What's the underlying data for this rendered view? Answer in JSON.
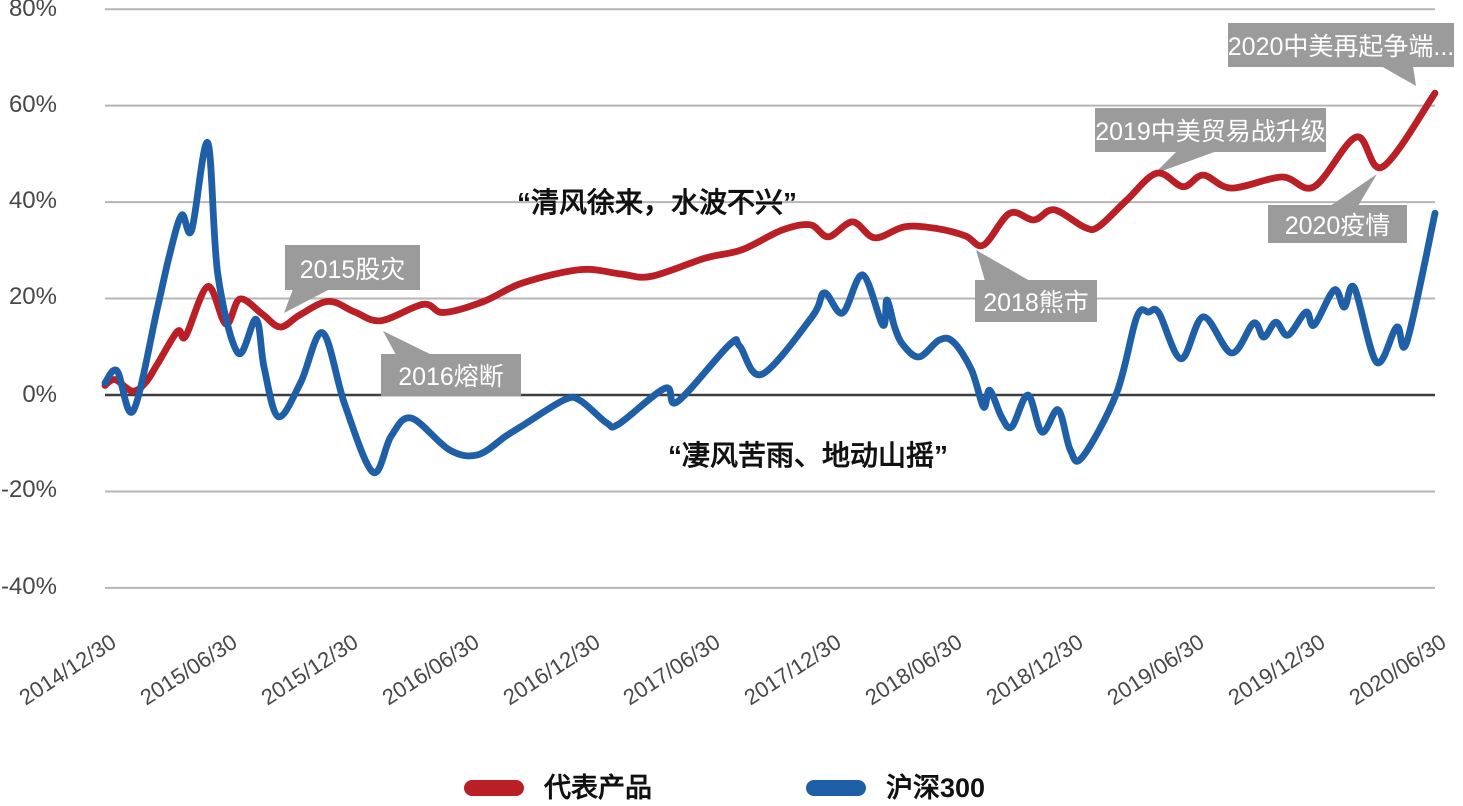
{
  "colors": {
    "series_red": "#b91f25",
    "series_blue": "#1f5fa8",
    "gridline": "#b5b5b5",
    "zero_axis": "#3d3d3d",
    "axis_label": "#484848",
    "callout_bg": "#9b9b9b",
    "callout_text": "#ffffff",
    "quote_text": "#111111"
  },
  "legend": {
    "items": [
      {
        "label": "代表产品",
        "color": "#b91f25"
      },
      {
        "label": "沪深300",
        "color": "#1f5fa8"
      }
    ]
  },
  "quotes": [
    {
      "text": "“清风徐来，水波不兴”"
    },
    {
      "text": "“凄风苦雨、地动山摇”"
    }
  ],
  "chart_data": {
    "type": "line",
    "title": "",
    "xlabel": "",
    "ylabel": "",
    "grid": true,
    "legend_position": "bottom",
    "y_axis": {
      "ticks": [
        "80%",
        "60%",
        "40%",
        "20%",
        "0%",
        "-20%",
        "-40%"
      ],
      "values": [
        80,
        60,
        40,
        20,
        0,
        -20,
        -40
      ],
      "range": [
        -40,
        80
      ]
    },
    "x_axis": {
      "labels": [
        "2014/12/30",
        "2015/06/30",
        "2015/12/30",
        "2016/06/30",
        "2016/12/30",
        "2017/06/30",
        "2017/12/30",
        "2018/06/30",
        "2018/12/30",
        "2019/06/30",
        "2019/12/30",
        "2020/06/30"
      ],
      "tick_month_index": [
        0,
        6,
        12,
        18,
        24,
        30,
        36,
        42,
        48,
        54,
        60,
        66
      ],
      "unit": "months since 2014/12/30"
    },
    "annotations": [
      {
        "label": "2015股灾"
      },
      {
        "label": "2016熔断"
      },
      {
        "label": "2018熊市"
      },
      {
        "label": "2019中美贸易战升级"
      },
      {
        "label": "2020疫情"
      },
      {
        "label": "2020中美再起争端..."
      }
    ],
    "series": [
      {
        "name": "代表产品",
        "color": "#b91f25",
        "points": [
          [
            0,
            2
          ],
          [
            0.5,
            3.2
          ],
          [
            1.35,
            0.8
          ],
          [
            2,
            2.5
          ],
          [
            2.6,
            6.4
          ],
          [
            3.6,
            13.2
          ],
          [
            4,
            12.2
          ],
          [
            5.1,
            22.5
          ],
          [
            6,
            14.7
          ],
          [
            6.7,
            19.9
          ],
          [
            7.8,
            16.8
          ],
          [
            8.7,
            14.1
          ],
          [
            9.7,
            16.7
          ],
          [
            11.1,
            19.4
          ],
          [
            12.4,
            17.2
          ],
          [
            13.7,
            15.4
          ],
          [
            15.8,
            18.8
          ],
          [
            16.8,
            17.1
          ],
          [
            18.8,
            19.4
          ],
          [
            20.7,
            23.2
          ],
          [
            23.6,
            26
          ],
          [
            25.6,
            25.1
          ],
          [
            27.1,
            24.6
          ],
          [
            29.8,
            28.4
          ],
          [
            31.6,
            30.1
          ],
          [
            33.6,
            34.2
          ],
          [
            35,
            35.3
          ],
          [
            35.9,
            32.8
          ],
          [
            37.1,
            35.9
          ],
          [
            38.2,
            32.6
          ],
          [
            39.7,
            34.9
          ],
          [
            41.3,
            34.5
          ],
          [
            42.7,
            33
          ],
          [
            43.6,
            31.1
          ],
          [
            44.9,
            37.7
          ],
          [
            46.1,
            36.3
          ],
          [
            47.1,
            38.4
          ],
          [
            48.6,
            34.8
          ],
          [
            49.3,
            34.9
          ],
          [
            50.7,
            40.4
          ],
          [
            52.2,
            46
          ],
          [
            53.5,
            43.2
          ],
          [
            54.5,
            45.6
          ],
          [
            55.9,
            42.9
          ],
          [
            58.4,
            45.2
          ],
          [
            60,
            43.2
          ],
          [
            62.1,
            53.5
          ],
          [
            63.4,
            47.3
          ],
          [
            66,
            62.6
          ]
        ]
      },
      {
        "name": "沪深300",
        "color": "#1f5fa8",
        "points": [
          [
            0,
            2.5
          ],
          [
            0.6,
            5
          ],
          [
            1.4,
            -3.3
          ],
          [
            2.6,
            18
          ],
          [
            3.2,
            29
          ],
          [
            3.8,
            37.3
          ],
          [
            4.3,
            34.2
          ],
          [
            5.1,
            52.3
          ],
          [
            5.6,
            25
          ],
          [
            6.6,
            8.7
          ],
          [
            7.5,
            15.7
          ],
          [
            7.9,
            5.6
          ],
          [
            8.6,
            -4.5
          ],
          [
            9.7,
            2.5
          ],
          [
            10.8,
            12.9
          ],
          [
            11.9,
            -2
          ],
          [
            13.3,
            -16
          ],
          [
            14.2,
            -8.5
          ],
          [
            15.2,
            -4.8
          ],
          [
            17.1,
            -11.4
          ],
          [
            18.5,
            -12.4
          ],
          [
            19.9,
            -8.5
          ],
          [
            20.7,
            -6.4
          ],
          [
            22.8,
            -1
          ],
          [
            23.6,
            -1.2
          ],
          [
            24.9,
            -5.8
          ],
          [
            25.5,
            -6
          ],
          [
            27.8,
            1.4
          ],
          [
            28.4,
            -1.4
          ],
          [
            31,
            10.5
          ],
          [
            31.5,
            10.1
          ],
          [
            32.6,
            4.3
          ],
          [
            35.1,
            16.3
          ],
          [
            35.7,
            21.2
          ],
          [
            36.6,
            17
          ],
          [
            37.6,
            24.9
          ],
          [
            38.6,
            14.5
          ],
          [
            38.8,
            19.7
          ],
          [
            39.2,
            13.9
          ],
          [
            39.6,
            10.4
          ],
          [
            40.4,
            7.9
          ],
          [
            41.4,
            11.4
          ],
          [
            42.1,
            11
          ],
          [
            43,
            5.2
          ],
          [
            43.6,
            -2.5
          ],
          [
            43.9,
            1
          ],
          [
            44.5,
            -4.6
          ],
          [
            45,
            -6.6
          ],
          [
            45.8,
            0
          ],
          [
            46.5,
            -7.7
          ],
          [
            47.3,
            -3.1
          ],
          [
            47.9,
            -11.4
          ],
          [
            48.5,
            -12.9
          ],
          [
            50.2,
            0.4
          ],
          [
            51.2,
            16.2
          ],
          [
            51.8,
            17.2
          ],
          [
            52.3,
            17
          ],
          [
            53.4,
            7.5
          ],
          [
            54.5,
            16.2
          ],
          [
            55.9,
            8.7
          ],
          [
            57,
            14.9
          ],
          [
            57.5,
            12
          ],
          [
            58.1,
            15.1
          ],
          [
            58.7,
            12.4
          ],
          [
            59.6,
            17.2
          ],
          [
            60,
            14.5
          ],
          [
            61,
            21.8
          ],
          [
            61.5,
            18.2
          ],
          [
            62,
            22.2
          ],
          [
            63.1,
            6.8
          ],
          [
            64.1,
            14.1
          ],
          [
            64.6,
            11
          ],
          [
            66,
            37.7
          ]
        ]
      }
    ]
  }
}
